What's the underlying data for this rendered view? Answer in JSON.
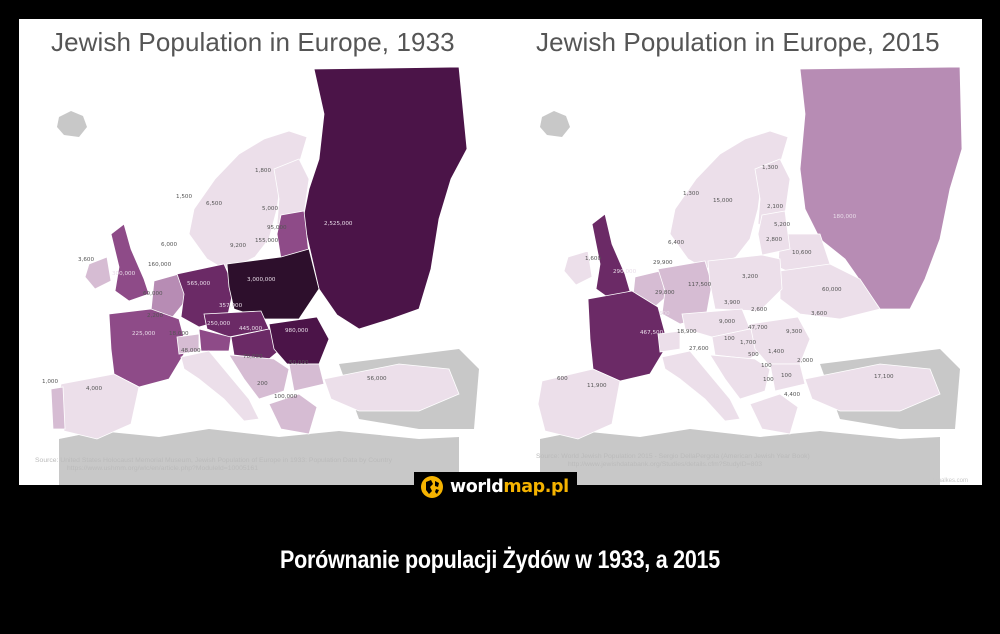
{
  "panels": [
    {
      "title": "Jewish Population in Europe, 1933",
      "source": "Source: United States Holocaust Memorial Museum, Jewish Population of Europe in 1933: Population Data by Country",
      "source_url": "https://www.ushmm.org/wlc/en/article.php?ModuleId=10005161",
      "labels": {
        "ussr": "2,525,000",
        "poland": "3,000,000",
        "germany": "565,000",
        "czech": "357,000",
        "austria": "250,000",
        "hungary": "445,000",
        "romania": "980,000",
        "uk": "300,000",
        "ireland": "3,600",
        "france": "225,000",
        "spain": "4,000",
        "portugal": "1,000",
        "italy": "48,000",
        "switzerland": "18,000",
        "belgium": "60,000",
        "netherlands": "160,000",
        "luxembourg": "2,200",
        "denmark": "6,000",
        "norway": "1,500",
        "sweden": "6,500",
        "finland": "1,800",
        "estonia": "5,000",
        "latvia": "95,000",
        "lithuania": "155,000",
        "danzig": "9,200",
        "yugoslavia": "70,000",
        "bulgaria": "50,000",
        "albania": "200",
        "greece": "100,000",
        "turkey": "56,000"
      }
    },
    {
      "title": "Jewish Population in Europe, 2015",
      "source": "Source: World Jewish Population 2015 - Sergio DellaPergola (American Jewish Year Book)",
      "source_url": "http://www.jewishdatabank.org/Studies/details.cfm?StudyID=803",
      "credit": "schmalkes.com",
      "labels": {
        "russia": "180,000",
        "ukraine": "60,000",
        "belarus": "10,600",
        "poland": "3,200",
        "germany": "117,500",
        "france": "467,500",
        "uk": "290,000",
        "ireland": "1,600",
        "spain": "11,900",
        "portugal": "600",
        "italy": "27,600",
        "switzerland": "18,900",
        "belgium": "29,800",
        "netherlands": "29,900",
        "luxembourg": "600",
        "denmark": "6,400",
        "norway": "1,300",
        "sweden": "15,000",
        "finland": "1,300",
        "estonia": "2,100",
        "latvia": "5,200",
        "lithuania": "2,800",
        "czech": "3,900",
        "slovakia": "2,600",
        "austria": "9,000",
        "hungary": "47,700",
        "romania": "9,300",
        "moldova": "3,600",
        "slovenia": "100",
        "croatia": "1,700",
        "bosnia": "500",
        "serbia": "1,400",
        "bulgaria": "2,000",
        "montenegro": "100",
        "macedonia": "100",
        "albania": "100",
        "greece": "4,400",
        "turkey": "17,100"
      }
    }
  ],
  "logo": {
    "text_white": "world",
    "text_orange": "map.pl"
  },
  "caption": "Porównanie populacji Żydów w 1933, a 2015",
  "colors": {
    "darkest": "#2d0f2c",
    "very_dark": "#4b1448",
    "dark": "#6b2a66",
    "medium": "#8e4b88",
    "light_medium": "#b78cb4",
    "light": "#d6bcd3",
    "pale": "#ecdfea",
    "non_europe": "#c8c8c8"
  }
}
